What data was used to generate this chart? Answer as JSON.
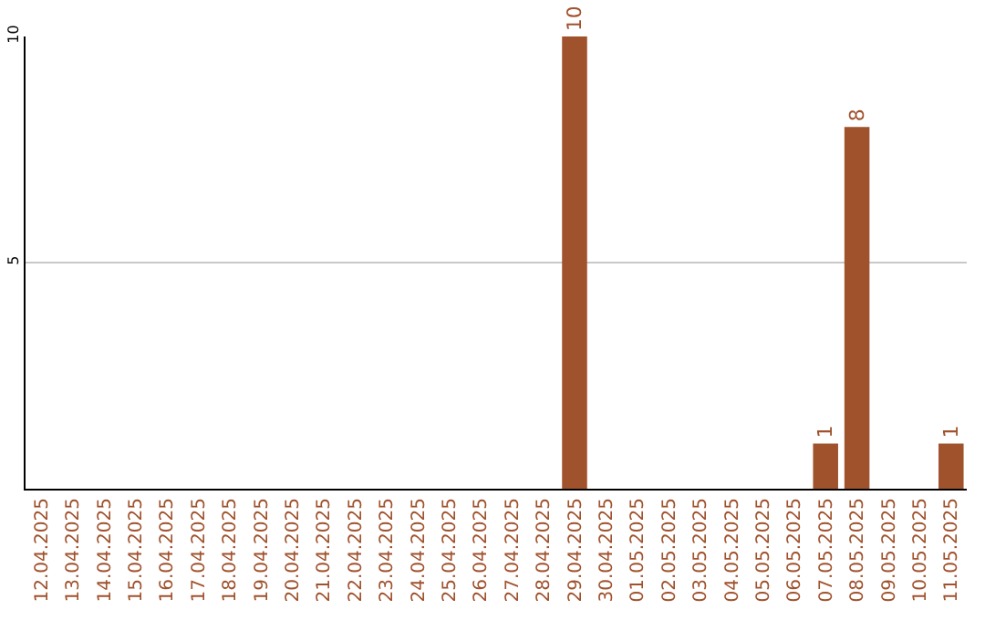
{
  "chart_data": {
    "type": "bar",
    "categories": [
      "12.04.2025",
      "13.04.2025",
      "14.04.2025",
      "15.04.2025",
      "16.04.2025",
      "17.04.2025",
      "18.04.2025",
      "19.04.2025",
      "20.04.2025",
      "21.04.2025",
      "22.04.2025",
      "23.04.2025",
      "24.04.2025",
      "25.04.2025",
      "26.04.2025",
      "27.04.2025",
      "28.04.2025",
      "29.04.2025",
      "30.04.2025",
      "01.05.2025",
      "02.05.2025",
      "03.05.2025",
      "04.05.2025",
      "05.05.2025",
      "06.05.2025",
      "07.05.2025",
      "08.05.2025",
      "09.05.2025",
      "10.05.2025",
      "11.05.2025"
    ],
    "values": [
      0,
      0,
      0,
      0,
      0,
      0,
      0,
      0,
      0,
      0,
      0,
      0,
      0,
      0,
      0,
      0,
      0,
      10,
      0,
      0,
      0,
      0,
      0,
      0,
      0,
      1,
      8,
      0,
      0,
      1
    ],
    "value_labels": [
      null,
      null,
      null,
      null,
      null,
      null,
      null,
      null,
      null,
      null,
      null,
      null,
      null,
      null,
      null,
      null,
      null,
      "10",
      null,
      null,
      null,
      null,
      null,
      null,
      null,
      "1",
      "8",
      null,
      null,
      "1"
    ],
    "color": "#a0522d",
    "ylim": [
      0,
      10
    ],
    "yticks": [
      5,
      10
    ],
    "grid": "y"
  }
}
